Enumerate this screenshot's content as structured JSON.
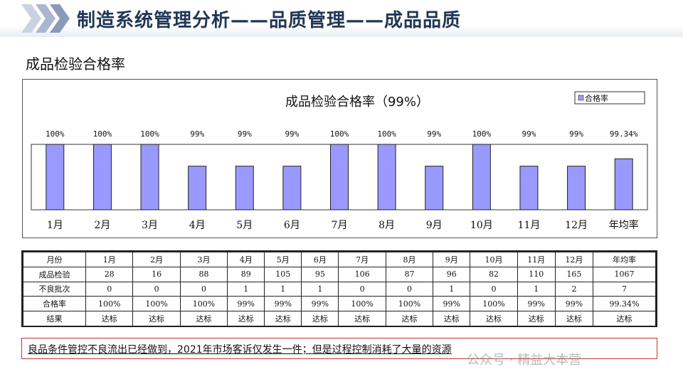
{
  "header": {
    "title": "制造系统管理分析——品质管理——成品品质"
  },
  "section": {
    "subtitle": "成品检验合格率"
  },
  "chart_data": {
    "type": "bar",
    "title": "成品检验合格率（99%）",
    "legend": [
      "合格率"
    ],
    "legend_position": "top-right",
    "categories": [
      "1月",
      "2月",
      "3月",
      "4月",
      "5月",
      "6月",
      "7月",
      "8月",
      "9月",
      "10月",
      "11月",
      "12月",
      "年均率"
    ],
    "series": [
      {
        "name": "合格率",
        "values": [
          100,
          100,
          100,
          99,
          99,
          99,
          100,
          100,
          99,
          100,
          99,
          99,
          99.34
        ]
      }
    ],
    "data_labels": [
      "100%",
      "100%",
      "100%",
      "99%",
      "99%",
      "99%",
      "100%",
      "100%",
      "99%",
      "100%",
      "99%",
      "99%",
      "99.34%"
    ],
    "ylim": [
      97,
      100
    ],
    "grid": false,
    "bar_color": "#9999ff"
  },
  "table": {
    "columns": [
      "月份",
      "1月",
      "2月",
      "3月",
      "4月",
      "5月",
      "6月",
      "7月",
      "8月",
      "9月",
      "10月",
      "11月",
      "12月",
      "年均率"
    ],
    "rows": [
      [
        "成品检验",
        "28",
        "16",
        "88",
        "89",
        "105",
        "95",
        "106",
        "87",
        "96",
        "82",
        "110",
        "165",
        "1067"
      ],
      [
        "不良批次",
        "0",
        "0",
        "0",
        "1",
        "1",
        "1",
        "0",
        "0",
        "1",
        "0",
        "1",
        "2",
        "7"
      ],
      [
        "合格率",
        "100%",
        "100%",
        "100%",
        "99%",
        "99%",
        "99%",
        "100%",
        "100%",
        "99%",
        "100%",
        "99%",
        "99%",
        "99.34%"
      ],
      [
        "结果",
        "达标",
        "达标",
        "达标",
        "达标",
        "达标",
        "达标",
        "达标",
        "达标",
        "达标",
        "达标",
        "达标",
        "达标",
        "达标"
      ]
    ]
  },
  "note": {
    "text": "良品条件管控不良流出已经做到，2021年市场客诉仅发生一件；但是过程控制消耗了大量的资源"
  },
  "watermark": {
    "text": "公众号 · 精益大本营"
  },
  "colors": {
    "title": "#1f3656",
    "chevron": "#9aa8c2",
    "bar": "#9999ff",
    "note_border": "#c0392b"
  }
}
